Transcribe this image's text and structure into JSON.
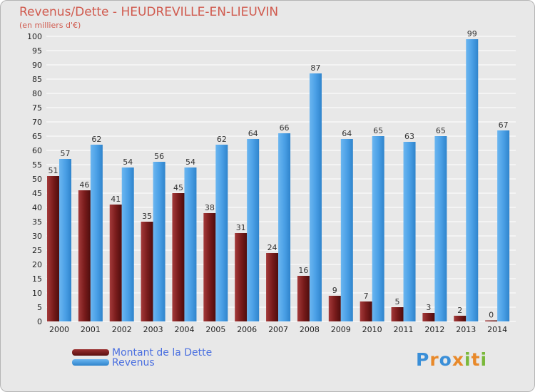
{
  "title": "Revenus/Dette - HEUDREVILLE-EN-LIEUVIN",
  "subtitle": "(en milliers d'€)",
  "colors": {
    "dette": "#7a1c1c",
    "revenus": "#4ba0e6",
    "title": "#d05a4e",
    "legend_text": "#4a6fe0"
  },
  "legend": {
    "dette_label": "Montant de la Dette",
    "revenus_label": "Revenus"
  },
  "logo": {
    "text": "Proxiti"
  },
  "chart_data": {
    "type": "bar",
    "title": "Revenus/Dette - HEUDREVILLE-EN-LIEUVIN",
    "ylabel": "(en milliers d'€)",
    "xlabel": "",
    "ylim": [
      0,
      100
    ],
    "ytick_step": 5,
    "grid": true,
    "legend_position": "bottom-left",
    "categories": [
      "2000",
      "2001",
      "2002",
      "2003",
      "2004",
      "2005",
      "2006",
      "2007",
      "2008",
      "2009",
      "2010",
      "2011",
      "2012",
      "2013",
      "2014"
    ],
    "series": [
      {
        "name": "Montant de la Dette",
        "values": [
          51,
          46,
          41,
          35,
          45,
          38,
          31,
          24,
          16,
          9,
          7,
          5,
          3,
          2,
          0
        ]
      },
      {
        "name": "Revenus",
        "values": [
          57,
          62,
          54,
          56,
          54,
          62,
          64,
          66,
          87,
          64,
          65,
          63,
          65,
          99,
          67
        ]
      }
    ]
  }
}
